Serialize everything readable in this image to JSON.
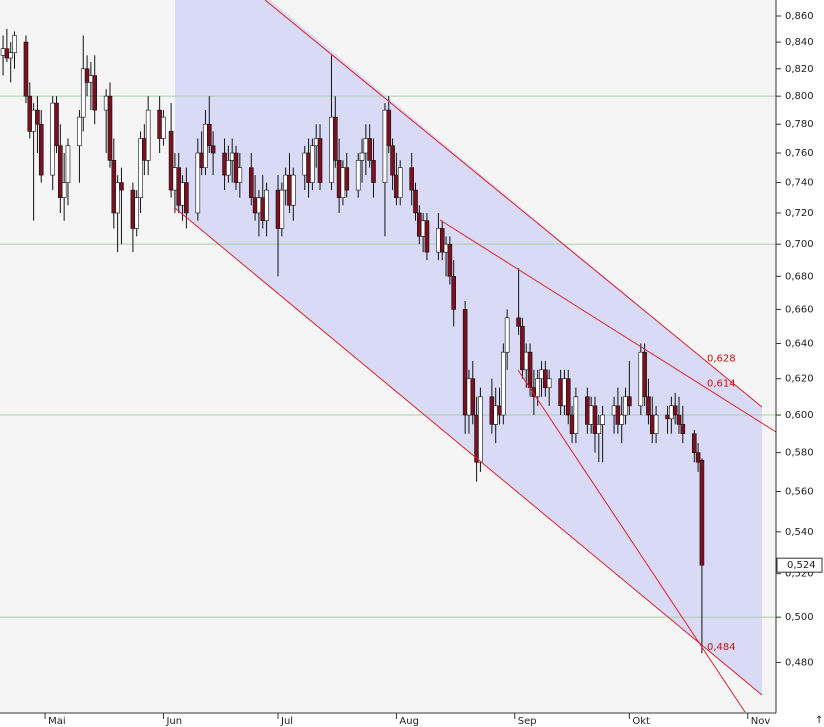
{
  "chart_data": {
    "type": "candlestick",
    "log_scale": true,
    "grid": true,
    "up_color": "#ffffff",
    "down_color": "#7a1020",
    "wick_color": "#111111",
    "ylim": [
      0.459,
      0.8725
    ],
    "xlim": [
      -11.8,
      191.4
    ],
    "yticks": [
      {
        "value": 0.86,
        "label": "0,860"
      },
      {
        "value": 0.84,
        "label": "0,840"
      },
      {
        "value": 0.82,
        "label": "0,820"
      },
      {
        "value": 0.8,
        "label": "0,800"
      },
      {
        "value": 0.78,
        "label": "0,780"
      },
      {
        "value": 0.76,
        "label": "0,760"
      },
      {
        "value": 0.74,
        "label": "0,740"
      },
      {
        "value": 0.72,
        "label": "0,720"
      },
      {
        "value": 0.7,
        "label": "0,700"
      },
      {
        "value": 0.68,
        "label": "0,680"
      },
      {
        "value": 0.66,
        "label": "0,660"
      },
      {
        "value": 0.64,
        "label": "0,640"
      },
      {
        "value": 0.62,
        "label": "0,620"
      },
      {
        "value": 0.6,
        "label": "0,600"
      },
      {
        "value": 0.58,
        "label": "0,580"
      },
      {
        "value": 0.56,
        "label": "0,560"
      },
      {
        "value": 0.54,
        "label": "0,540"
      },
      {
        "value": 0.52,
        "label": "0,520"
      },
      {
        "value": 0.5,
        "label": "0,500"
      },
      {
        "value": 0.48,
        "label": "0,480"
      }
    ],
    "xticks": [
      {
        "value": 0,
        "label": "Mai"
      },
      {
        "value": 31,
        "label": "Jun"
      },
      {
        "value": 61,
        "label": "Jul"
      },
      {
        "value": 92,
        "label": "Aug"
      },
      {
        "value": 123,
        "label": "Sep"
      },
      {
        "value": 153,
        "label": "Okt"
      },
      {
        "value": 184,
        "label": "Nov"
      }
    ],
    "x": [
      -11,
      -10,
      -9,
      -8,
      -5,
      -4,
      -3,
      -2,
      -1,
      2,
      3,
      4,
      5,
      6,
      9,
      10,
      11,
      12,
      13,
      16,
      17,
      18,
      19,
      20,
      23,
      24,
      25,
      26,
      27,
      30,
      31,
      33,
      34,
      35,
      36,
      37,
      40,
      41,
      42,
      43,
      44,
      47,
      48,
      49,
      50,
      51,
      54,
      55,
      56,
      57,
      58,
      61,
      62,
      63,
      64,
      65,
      68,
      69,
      70,
      71,
      72,
      75,
      76,
      77,
      78,
      79,
      82,
      83,
      84,
      85,
      86,
      89,
      90,
      91,
      92,
      93,
      96,
      97,
      98,
      99,
      100,
      103,
      104,
      105,
      106,
      107,
      110,
      111,
      112,
      113,
      114,
      117,
      118,
      119,
      120,
      121,
      124,
      125,
      126,
      127,
      128,
      129,
      130,
      131,
      132,
      135,
      136,
      137,
      138,
      139,
      142,
      143,
      144,
      145,
      146,
      149,
      150,
      151,
      152,
      153,
      156,
      157,
      158,
      159,
      160,
      163,
      164,
      165,
      166,
      167,
      170,
      171,
      172
    ],
    "open": [
      0.83,
      0.835,
      0.828,
      0.832,
      0.84,
      0.8,
      0.775,
      0.79,
      0.78,
      0.745,
      0.795,
      0.765,
      0.73,
      0.74,
      0.765,
      0.785,
      0.82,
      0.81,
      0.815,
      0.79,
      0.8,
      0.755,
      0.72,
      0.74,
      0.735,
      0.71,
      0.73,
      0.77,
      0.755,
      0.79,
      0.77,
      0.775,
      0.735,
      0.75,
      0.725,
      0.74,
      0.72,
      0.76,
      0.75,
      0.78,
      0.765,
      0.76,
      0.745,
      0.755,
      0.76,
      0.74,
      0.75,
      0.73,
      0.72,
      0.73,
      0.715,
      0.735,
      0.71,
      0.735,
      0.745,
      0.725,
      0.745,
      0.76,
      0.74,
      0.765,
      0.77,
      0.74,
      0.785,
      0.755,
      0.73,
      0.75,
      0.735,
      0.755,
      0.76,
      0.77,
      0.755,
      0.74,
      0.79,
      0.765,
      0.745,
      0.73,
      0.75,
      0.735,
      0.72,
      0.705,
      0.715,
      0.695,
      0.71,
      0.695,
      0.7,
      0.68,
      0.66,
      0.6,
      0.62,
      0.6,
      0.575,
      0.61,
      0.595,
      0.605,
      0.6,
      0.635,
      0.655,
      0.65,
      0.625,
      0.635,
      0.615,
      0.61,
      0.62,
      0.625,
      0.615,
      0.62,
      0.605,
      0.62,
      0.6,
      0.59,
      0.61,
      0.595,
      0.605,
      0.59,
      0.595,
      0.6,
      0.605,
      0.595,
      0.6,
      0.61,
      0.605,
      0.635,
      0.61,
      0.6,
      0.59,
      0.6,
      0.598,
      0.605,
      0.6,
      0.595,
      0.59,
      0.58,
      0.576
    ],
    "high": [
      0.845,
      0.85,
      0.84,
      0.848,
      0.845,
      0.81,
      0.795,
      0.8,
      0.79,
      0.8,
      0.8,
      0.78,
      0.76,
      0.77,
      0.79,
      0.845,
      0.83,
      0.825,
      0.83,
      0.805,
      0.81,
      0.77,
      0.745,
      0.75,
      0.74,
      0.735,
      0.775,
      0.78,
      0.8,
      0.8,
      0.79,
      0.795,
      0.76,
      0.76,
      0.745,
      0.75,
      0.77,
      0.775,
      0.79,
      0.8,
      0.775,
      0.77,
      0.765,
      0.77,
      0.765,
      0.76,
      0.76,
      0.745,
      0.735,
      0.745,
      0.74,
      0.745,
      0.74,
      0.75,
      0.76,
      0.75,
      0.765,
      0.77,
      0.77,
      0.78,
      0.78,
      0.83,
      0.8,
      0.77,
      0.755,
      0.76,
      0.76,
      0.77,
      0.78,
      0.78,
      0.77,
      0.795,
      0.8,
      0.77,
      0.76,
      0.755,
      0.76,
      0.74,
      0.725,
      0.72,
      0.72,
      0.72,
      0.715,
      0.705,
      0.705,
      0.69,
      0.665,
      0.625,
      0.63,
      0.61,
      0.615,
      0.62,
      0.615,
      0.615,
      0.64,
      0.66,
      0.685,
      0.655,
      0.64,
      0.64,
      0.625,
      0.625,
      0.63,
      0.63,
      0.625,
      0.625,
      0.625,
      0.625,
      0.605,
      0.615,
      0.615,
      0.61,
      0.61,
      0.6,
      0.605,
      0.61,
      0.615,
      0.61,
      0.615,
      0.63,
      0.64,
      0.64,
      0.62,
      0.61,
      0.605,
      0.605,
      0.61,
      0.612,
      0.61,
      0.605,
      0.592,
      0.585,
      0.577
    ],
    "low": [
      0.815,
      0.825,
      0.81,
      0.82,
      0.795,
      0.77,
      0.715,
      0.76,
      0.74,
      0.735,
      0.76,
      0.72,
      0.715,
      0.725,
      0.74,
      0.775,
      0.8,
      0.79,
      0.78,
      0.76,
      0.75,
      0.71,
      0.695,
      0.7,
      0.695,
      0.705,
      0.72,
      0.745,
      0.745,
      0.76,
      0.765,
      0.73,
      0.72,
      0.72,
      0.715,
      0.71,
      0.715,
      0.745,
      0.745,
      0.76,
      0.745,
      0.735,
      0.74,
      0.74,
      0.735,
      0.73,
      0.725,
      0.715,
      0.705,
      0.71,
      0.705,
      0.68,
      0.705,
      0.725,
      0.72,
      0.715,
      0.735,
      0.73,
      0.735,
      0.75,
      0.735,
      0.735,
      0.75,
      0.72,
      0.725,
      0.73,
      0.73,
      0.74,
      0.745,
      0.75,
      0.73,
      0.705,
      0.76,
      0.735,
      0.725,
      0.725,
      0.725,
      0.715,
      0.7,
      0.695,
      0.69,
      0.69,
      0.69,
      0.68,
      0.675,
      0.65,
      0.59,
      0.59,
      0.595,
      0.565,
      0.57,
      0.59,
      0.585,
      0.595,
      0.595,
      0.625,
      0.645,
      0.62,
      0.615,
      0.61,
      0.6,
      0.605,
      0.61,
      0.61,
      0.605,
      0.6,
      0.6,
      0.595,
      0.585,
      0.585,
      0.59,
      0.59,
      0.58,
      0.575,
      0.575,
      0.59,
      0.59,
      0.585,
      0.595,
      0.6,
      0.6,
      0.605,
      0.595,
      0.585,
      0.585,
      0.59,
      0.59,
      0.595,
      0.59,
      0.585,
      0.575,
      0.57,
      0.484
    ],
    "close": [
      0.835,
      0.828,
      0.832,
      0.845,
      0.8,
      0.775,
      0.79,
      0.78,
      0.745,
      0.795,
      0.765,
      0.73,
      0.74,
      0.765,
      0.785,
      0.82,
      0.81,
      0.815,
      0.79,
      0.8,
      0.755,
      0.72,
      0.74,
      0.735,
      0.71,
      0.73,
      0.77,
      0.755,
      0.79,
      0.77,
      0.785,
      0.735,
      0.75,
      0.725,
      0.74,
      0.72,
      0.76,
      0.75,
      0.78,
      0.765,
      0.76,
      0.745,
      0.755,
      0.76,
      0.74,
      0.75,
      0.73,
      0.72,
      0.73,
      0.715,
      0.735,
      0.71,
      0.735,
      0.745,
      0.725,
      0.745,
      0.76,
      0.74,
      0.765,
      0.77,
      0.74,
      0.785,
      0.755,
      0.73,
      0.75,
      0.735,
      0.755,
      0.76,
      0.77,
      0.755,
      0.74,
      0.79,
      0.765,
      0.745,
      0.73,
      0.75,
      0.735,
      0.72,
      0.705,
      0.715,
      0.695,
      0.71,
      0.695,
      0.7,
      0.68,
      0.66,
      0.6,
      0.62,
      0.6,
      0.575,
      0.61,
      0.595,
      0.605,
      0.6,
      0.635,
      0.655,
      0.65,
      0.625,
      0.635,
      0.615,
      0.61,
      0.62,
      0.625,
      0.615,
      0.62,
      0.605,
      0.62,
      0.6,
      0.59,
      0.61,
      0.595,
      0.605,
      0.59,
      0.595,
      0.6,
      0.605,
      0.595,
      0.6,
      0.61,
      0.605,
      0.635,
      0.61,
      0.6,
      0.59,
      0.6,
      0.598,
      0.605,
      0.6,
      0.595,
      0.59,
      0.58,
      0.575,
      0.524
    ],
    "annotations": [
      {
        "value": 0.628,
        "label": "0,628"
      },
      {
        "value": 0.614,
        "label": "0,614"
      },
      {
        "value": 0.484,
        "label": "0,484"
      }
    ],
    "last_price": {
      "value": 0.524,
      "label": "0,524"
    }
  }
}
